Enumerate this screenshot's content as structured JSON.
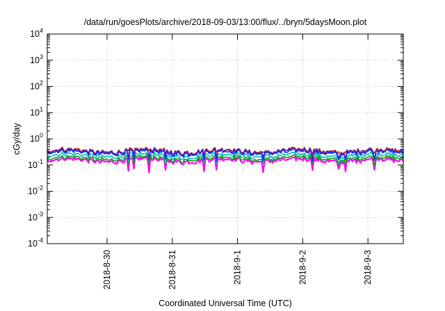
{
  "chart_data": {
    "type": "line",
    "title": "/data/run/goesPlots/archive/2018-09-03/13:00/flux/../bryn/5daysMoon.plot",
    "xlabel": "Coordinated Universal Time (UTC)",
    "ylabel": "cGy/day",
    "y_scale": "log",
    "ylim": [
      0.0001,
      10000
    ],
    "y_ticks": [
      {
        "value": 0.0001,
        "base": "10",
        "exp": "-4"
      },
      {
        "value": 0.001,
        "base": "10",
        "exp": "-3"
      },
      {
        "value": 0.01,
        "base": "10",
        "exp": "-2"
      },
      {
        "value": 0.1,
        "base": "10",
        "exp": "-1"
      },
      {
        "value": 1,
        "base": "10",
        "exp": "0"
      },
      {
        "value": 10,
        "base": "10",
        "exp": "1"
      },
      {
        "value": 100,
        "base": "10",
        "exp": "2"
      },
      {
        "value": 1000,
        "base": "10",
        "exp": "3"
      },
      {
        "value": 10000,
        "base": "10",
        "exp": "4"
      }
    ],
    "x_start": "2018-08-29 02:00",
    "x_end": "2018-09-03 13:00",
    "x_ticks": [
      {
        "value": "2018-08-30 00:00",
        "label": "2018-8-30"
      },
      {
        "value": "2018-08-31 00:00",
        "label": "2018-8-31"
      },
      {
        "value": "2018-09-01 00:00",
        "label": "2018-9-1"
      },
      {
        "value": "2018-09-02 00:00",
        "label": "2018-9-2"
      },
      {
        "value": "2018-09-03 00:00",
        "label": "2018-9-3"
      }
    ],
    "grid": true,
    "legend": "none",
    "series": [
      {
        "color": "#ff00ff",
        "base": 0.15,
        "dips": 0.06
      },
      {
        "color": "#00aa00",
        "base": 0.18,
        "dips": 0.11
      },
      {
        "color": "#00bbbb",
        "base": 0.23,
        "dips": 0.14
      },
      {
        "color": "#0033ff",
        "base": 0.3,
        "dips": 0.15
      },
      {
        "color": "#cc2200",
        "base": 0.35,
        "dips": 0.3
      },
      {
        "color": "#4422cc",
        "base": 0.33,
        "dips": 0.18
      }
    ]
  }
}
